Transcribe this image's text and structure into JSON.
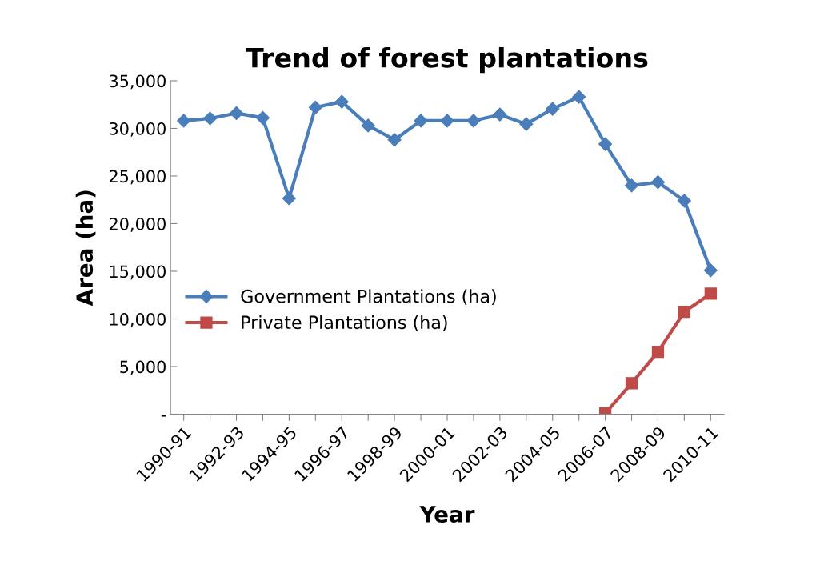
{
  "chart_data": {
    "type": "line",
    "title": "Trend of forest plantations",
    "xlabel": "Year",
    "ylabel": "Area (ha)",
    "categories": [
      "1990-91",
      null,
      "1992-93",
      null,
      "1994-95",
      null,
      "1996-97",
      null,
      "1998-99",
      null,
      "2000-01",
      null,
      "2002-03",
      null,
      "2004-05",
      null,
      "2006-07",
      null,
      "2008-09",
      null,
      "2010-11"
    ],
    "series": [
      {
        "name": "Government Plantations (ha)",
        "color": "#4a7ebb",
        "marker": "diamond",
        "values": [
          30800,
          31050,
          31600,
          31100,
          22650,
          32200,
          32800,
          30300,
          28800,
          30800,
          30800,
          30800,
          31450,
          30450,
          32050,
          33300,
          28350,
          24000,
          24350,
          22400,
          15100
        ]
      },
      {
        "name": "Private Plantations (ha)",
        "color": "#be4b48",
        "marker": "square",
        "values": [
          null,
          null,
          null,
          null,
          null,
          null,
          null,
          null,
          null,
          null,
          null,
          null,
          null,
          null,
          null,
          null,
          100,
          3250,
          6550,
          10750,
          12650
        ]
      }
    ],
    "ylim": [
      0,
      35000
    ],
    "yticks": [
      {
        "value": 0,
        "label": "-"
      },
      {
        "value": 5000,
        "label": "5,000"
      },
      {
        "value": 10000,
        "label": "10,000"
      },
      {
        "value": 15000,
        "label": "15,000"
      },
      {
        "value": 20000,
        "label": "20,000"
      },
      {
        "value": 25000,
        "label": "25,000"
      },
      {
        "value": 30000,
        "label": "30,000"
      },
      {
        "value": 35000,
        "label": "35,000"
      }
    ],
    "grid": false,
    "legend": "center",
    "line_style": "solid"
  }
}
